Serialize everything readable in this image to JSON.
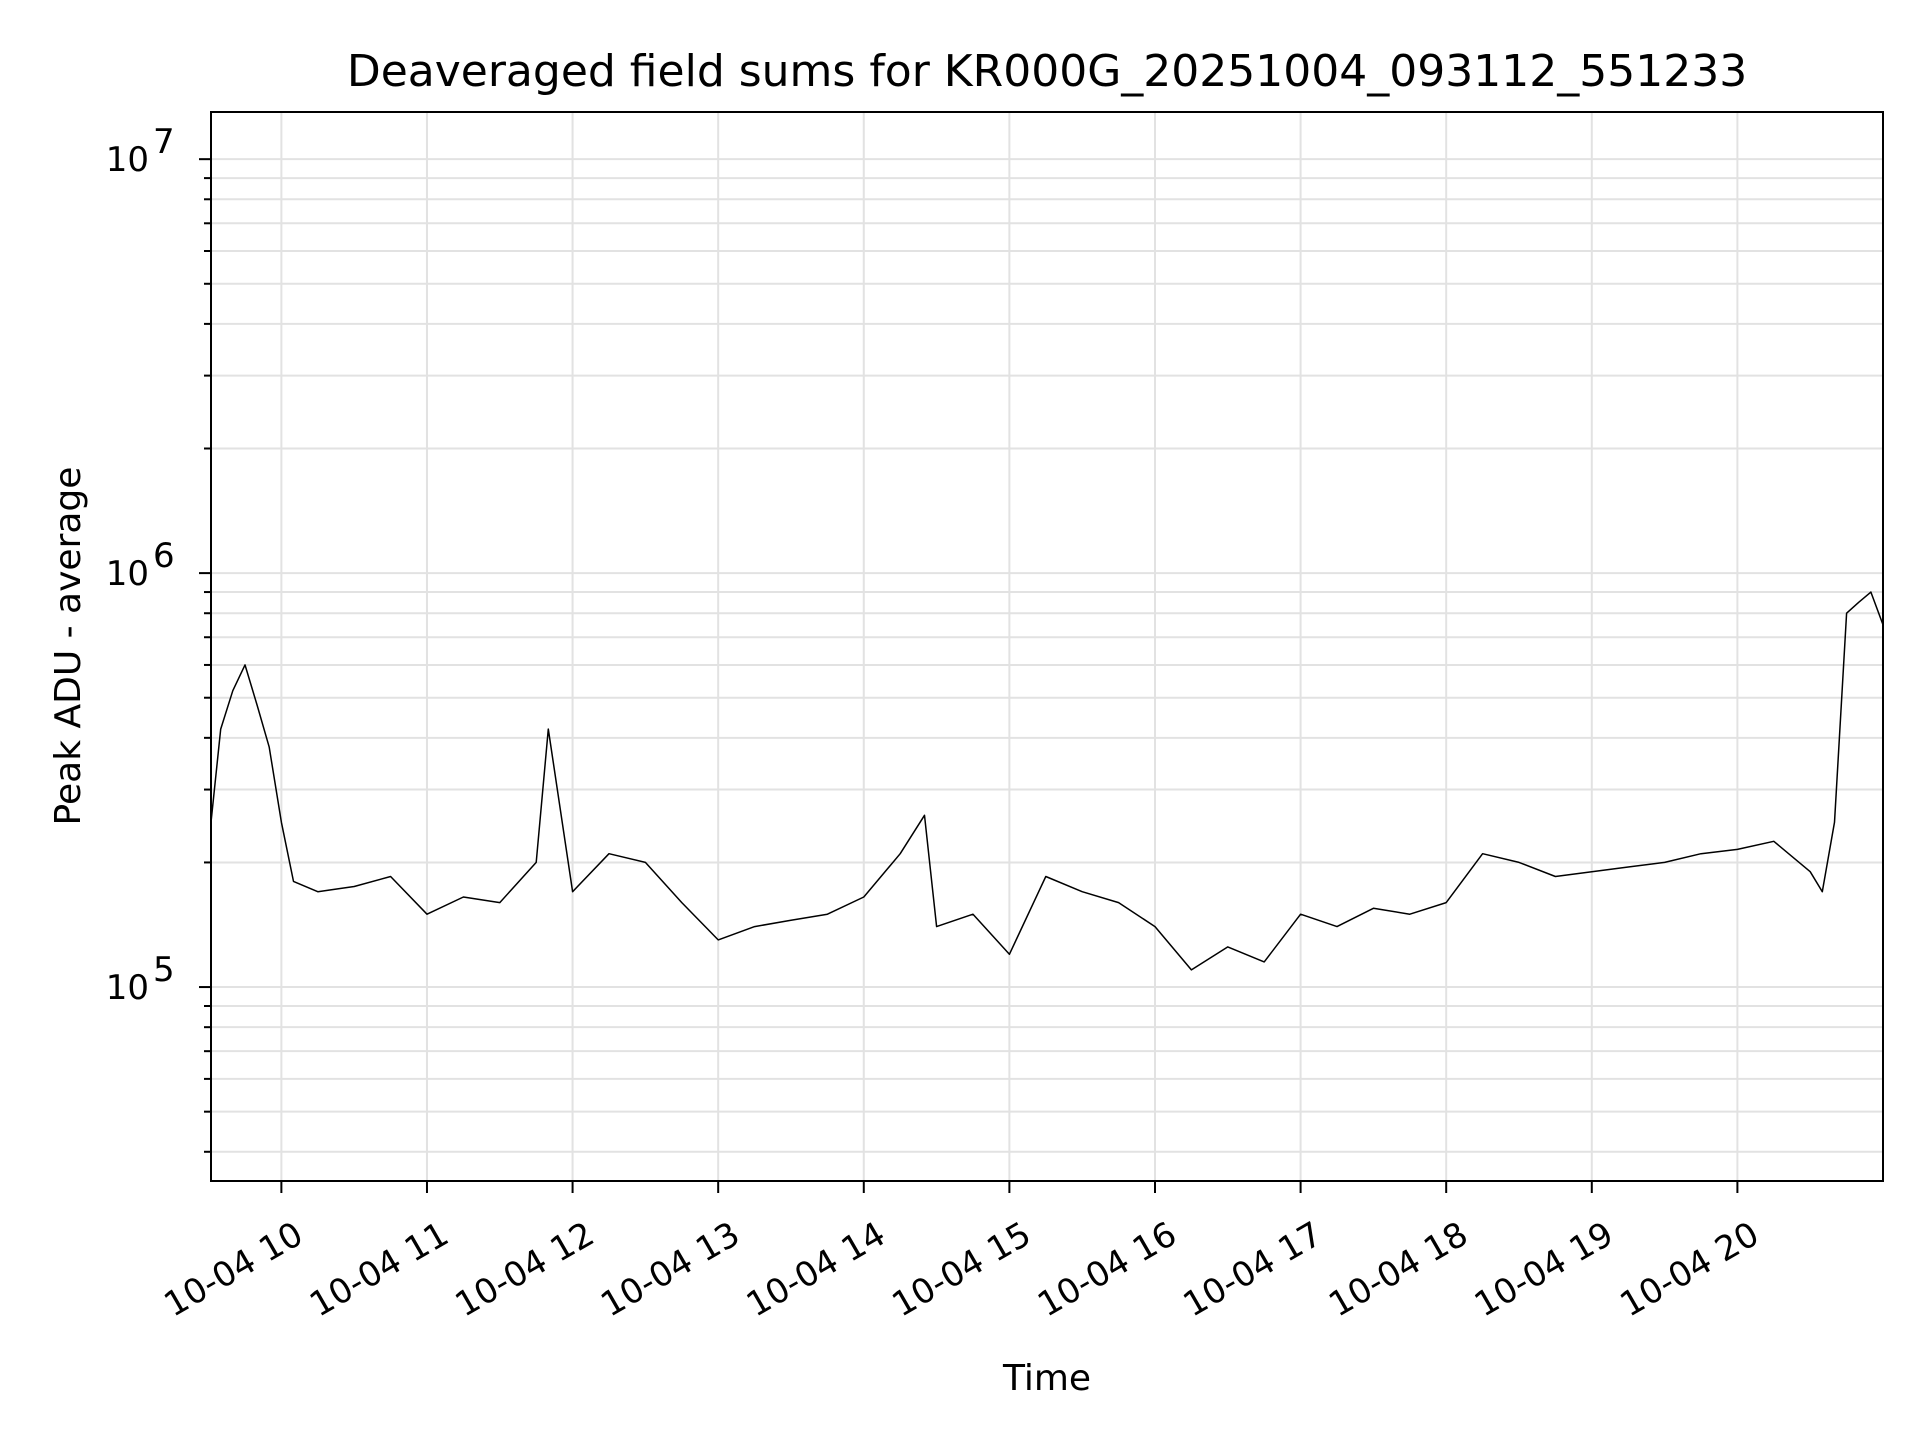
{
  "chart_data": {
    "type": "line",
    "title": "Deaveraged field sums for KR000G_20251004_093112_551233",
    "xlabel": "Time",
    "ylabel": "Peak ADU - average",
    "yscale": "log",
    "ylim": [
      34000,
      13000000
    ],
    "xlim": [
      "2025-10-04 09:31",
      "2025-10-04 21:00"
    ],
    "grid": true,
    "x_ticks": [
      "10-04 10",
      "10-04 11",
      "10-04 12",
      "10-04 13",
      "10-04 14",
      "10-04 15",
      "10-04 16",
      "10-04 17",
      "10-04 18",
      "10-04 19",
      "10-04 20"
    ],
    "y_ticks": [
      {
        "base": "10",
        "exp": "5",
        "value": 100000
      },
      {
        "base": "10",
        "exp": "6",
        "value": 1000000
      },
      {
        "base": "10",
        "exp": "7",
        "value": 10000000
      }
    ],
    "series": [
      {
        "color": "#000000",
        "x": [
          "2025-10-04 09:31",
          "2025-10-04 09:35",
          "2025-10-04 09:40",
          "2025-10-04 09:45",
          "2025-10-04 09:50",
          "2025-10-04 09:55",
          "2025-10-04 10:00",
          "2025-10-04 10:05",
          "2025-10-04 10:15",
          "2025-10-04 10:30",
          "2025-10-04 10:45",
          "2025-10-04 11:00",
          "2025-10-04 11:15",
          "2025-10-04 11:30",
          "2025-10-04 11:45",
          "2025-10-04 11:50",
          "2025-10-04 12:00",
          "2025-10-04 12:15",
          "2025-10-04 12:30",
          "2025-10-04 12:45",
          "2025-10-04 13:00",
          "2025-10-04 13:15",
          "2025-10-04 13:30",
          "2025-10-04 13:45",
          "2025-10-04 14:00",
          "2025-10-04 14:15",
          "2025-10-04 14:25",
          "2025-10-04 14:30",
          "2025-10-04 14:45",
          "2025-10-04 15:00",
          "2025-10-04 15:15",
          "2025-10-04 15:30",
          "2025-10-04 15:45",
          "2025-10-04 16:00",
          "2025-10-04 16:15",
          "2025-10-04 16:30",
          "2025-10-04 16:45",
          "2025-10-04 17:00",
          "2025-10-04 17:15",
          "2025-10-04 17:30",
          "2025-10-04 17:45",
          "2025-10-04 18:00",
          "2025-10-04 18:15",
          "2025-10-04 18:30",
          "2025-10-04 18:45",
          "2025-10-04 19:00",
          "2025-10-04 19:15",
          "2025-10-04 19:30",
          "2025-10-04 19:45",
          "2025-10-04 20:00",
          "2025-10-04 20:15",
          "2025-10-04 20:30",
          "2025-10-04 20:35",
          "2025-10-04 20:40",
          "2025-10-04 20:45",
          "2025-10-04 20:50",
          "2025-10-04 20:55",
          "2025-10-04 21:00"
        ],
        "y": [
          250000,
          420000,
          520000,
          600000,
          480000,
          380000,
          250000,
          180000,
          170000,
          175000,
          185000,
          150000,
          165000,
          160000,
          200000,
          420000,
          170000,
          210000,
          200000,
          160000,
          130000,
          140000,
          145000,
          150000,
          165000,
          210000,
          260000,
          140000,
          150000,
          120000,
          185000,
          170000,
          160000,
          140000,
          110000,
          125000,
          115000,
          150000,
          140000,
          155000,
          150000,
          160000,
          210000,
          200000,
          185000,
          190000,
          195000,
          200000,
          210000,
          215000,
          225000,
          190000,
          170000,
          250000,
          800000,
          850000,
          900000,
          750000
        ]
      }
    ]
  }
}
